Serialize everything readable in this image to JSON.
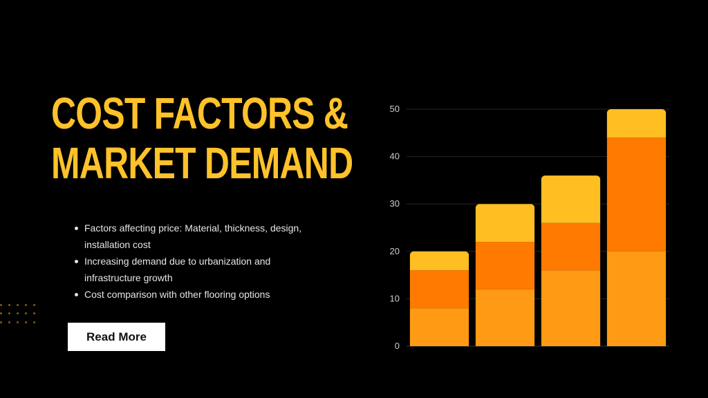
{
  "slide": {
    "title_lines": [
      "COST FACTORS &",
      "MARKET DEMAND"
    ],
    "bullets": [
      "Factors affecting price: Material, thickness, design, installation cost",
      "Increasing demand due to urbanization and infrastructure growth",
      "Cost comparison with other flooring options"
    ],
    "button_label": "Read More",
    "colors": {
      "background": "#000000",
      "title": "#FFC22A",
      "button_bg": "#FFFFFF",
      "decor_dots": "#8A5A12"
    }
  },
  "chart_data": {
    "type": "bar",
    "stacked": true,
    "categories": [
      "",
      "",
      "",
      ""
    ],
    "series": [
      {
        "values": [
          8,
          12,
          16,
          20
        ],
        "color": "#FF9A14"
      },
      {
        "values": [
          8,
          10,
          10,
          24
        ],
        "color": "#FF7A00"
      },
      {
        "values": [
          4,
          8,
          10,
          6
        ],
        "color": "#FFBE22"
      }
    ],
    "ylim": [
      0,
      50
    ],
    "yticks": [
      0,
      10,
      20,
      30,
      40,
      50
    ],
    "ytick_labels": [
      "0",
      "10",
      "20",
      "30",
      "40",
      "50"
    ],
    "grid": true,
    "axis_color": "#cccccc",
    "title": "",
    "xlabel": "",
    "ylabel": ""
  }
}
